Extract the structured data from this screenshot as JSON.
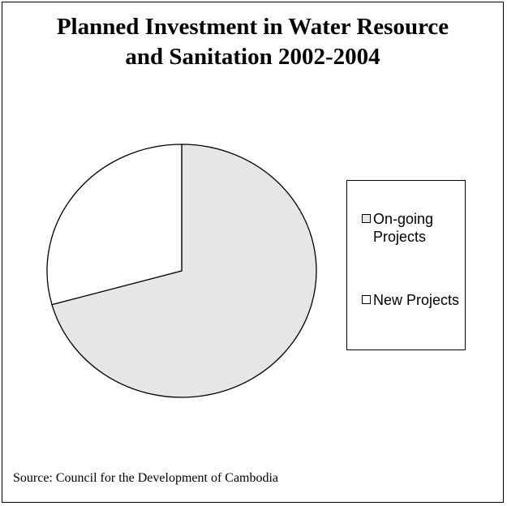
{
  "chart_data": {
    "type": "pie",
    "title": "Planned Investment in Water Resource and Sanitation 2002-2004",
    "title_lines": [
      "Planned Investment in Water Resource",
      "and Sanitation 2002-2004"
    ],
    "slices": [
      {
        "label": "On-going Projects",
        "value": 70.7,
        "color": "#e6e6e6"
      },
      {
        "label": "New Projects",
        "value": 29.3,
        "color": "#ffffff"
      }
    ],
    "legend": {
      "placement": "right",
      "entries": [
        "On-going Projects",
        "New Projects"
      ]
    },
    "source": "Source: Council for the Development of Cambodia"
  }
}
